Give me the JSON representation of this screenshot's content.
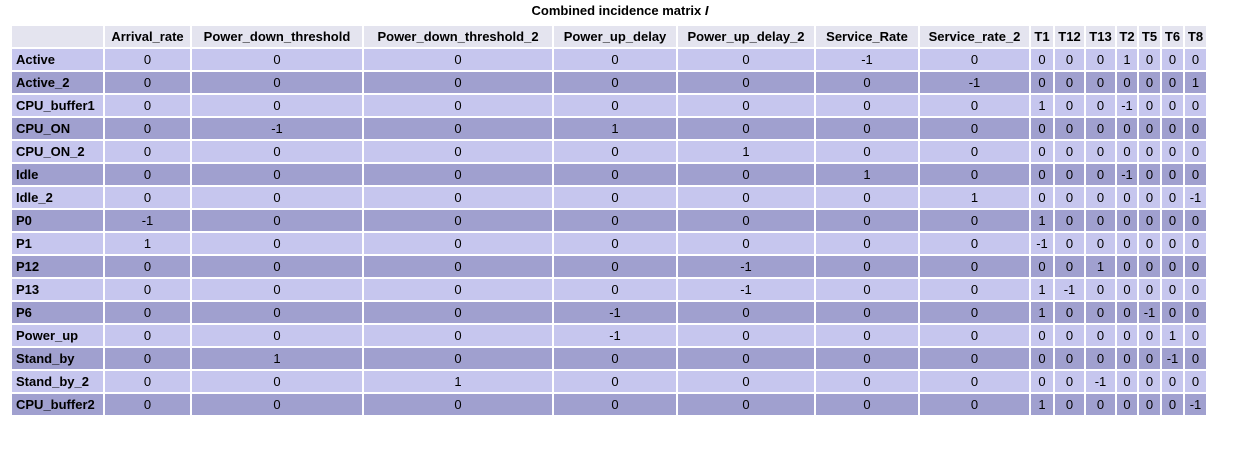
{
  "title": {
    "text": "Combined incidence matrix ",
    "symbol": "I"
  },
  "columns": [
    "Arrival_rate",
    "Power_down_threshold",
    "Power_down_threshold_2",
    "Power_up_delay",
    "Power_up_delay_2",
    "Service_Rate",
    "Service_rate_2",
    "T1",
    "T12",
    "T13",
    "T2",
    "T5",
    "T6",
    "T8"
  ],
  "rows": [
    {
      "place": "Active",
      "values": [
        "0",
        "0",
        "0",
        "0",
        "0",
        "-1",
        "0",
        "0",
        "0",
        "0",
        "1",
        "0",
        "0",
        "0"
      ]
    },
    {
      "place": "Active_2",
      "values": [
        "0",
        "0",
        "0",
        "0",
        "0",
        "0",
        "-1",
        "0",
        "0",
        "0",
        "0",
        "0",
        "0",
        "1"
      ]
    },
    {
      "place": "CPU_buffer1",
      "values": [
        "0",
        "0",
        "0",
        "0",
        "0",
        "0",
        "0",
        "1",
        "0",
        "0",
        "-1",
        "0",
        "0",
        "0"
      ]
    },
    {
      "place": "CPU_ON",
      "values": [
        "0",
        "-1",
        "0",
        "1",
        "0",
        "0",
        "0",
        "0",
        "0",
        "0",
        "0",
        "0",
        "0",
        "0"
      ]
    },
    {
      "place": "CPU_ON_2",
      "values": [
        "0",
        "0",
        "0",
        "0",
        "1",
        "0",
        "0",
        "0",
        "0",
        "0",
        "0",
        "0",
        "0",
        "0"
      ]
    },
    {
      "place": "Idle",
      "values": [
        "0",
        "0",
        "0",
        "0",
        "0",
        "1",
        "0",
        "0",
        "0",
        "0",
        "-1",
        "0",
        "0",
        "0"
      ]
    },
    {
      "place": "Idle_2",
      "values": [
        "0",
        "0",
        "0",
        "0",
        "0",
        "0",
        "1",
        "0",
        "0",
        "0",
        "0",
        "0",
        "0",
        "-1"
      ]
    },
    {
      "place": "P0",
      "values": [
        "-1",
        "0",
        "0",
        "0",
        "0",
        "0",
        "0",
        "1",
        "0",
        "0",
        "0",
        "0",
        "0",
        "0"
      ]
    },
    {
      "place": "P1",
      "values": [
        "1",
        "0",
        "0",
        "0",
        "0",
        "0",
        "0",
        "-1",
        "0",
        "0",
        "0",
        "0",
        "0",
        "0"
      ]
    },
    {
      "place": "P12",
      "values": [
        "0",
        "0",
        "0",
        "0",
        "-1",
        "0",
        "0",
        "0",
        "0",
        "1",
        "0",
        "0",
        "0",
        "0"
      ]
    },
    {
      "place": "P13",
      "values": [
        "0",
        "0",
        "0",
        "0",
        "-1",
        "0",
        "0",
        "1",
        "-1",
        "0",
        "0",
        "0",
        "0",
        "0"
      ]
    },
    {
      "place": "P6",
      "values": [
        "0",
        "0",
        "0",
        "-1",
        "0",
        "0",
        "0",
        "1",
        "0",
        "0",
        "0",
        "-1",
        "0",
        "0"
      ]
    },
    {
      "place": "Power_up",
      "values": [
        "0",
        "0",
        "0",
        "-1",
        "0",
        "0",
        "0",
        "0",
        "0",
        "0",
        "0",
        "0",
        "1",
        "0"
      ]
    },
    {
      "place": "Stand_by",
      "values": [
        "0",
        "1",
        "0",
        "0",
        "0",
        "0",
        "0",
        "0",
        "0",
        "0",
        "0",
        "0",
        "-1",
        "0"
      ]
    },
    {
      "place": "Stand_by_2",
      "values": [
        "0",
        "0",
        "1",
        "0",
        "0",
        "0",
        "0",
        "0",
        "0",
        "-1",
        "0",
        "0",
        "0",
        "0"
      ]
    },
    {
      "place": "CPU_buffer2",
      "values": [
        "0",
        "0",
        "0",
        "0",
        "0",
        "0",
        "0",
        "1",
        "0",
        "0",
        "0",
        "0",
        "0",
        "-1"
      ]
    }
  ],
  "colors": {
    "header_background": "#e4e4ef",
    "row_light": "#c6c6ee",
    "row_dark": "#a0a0cf"
  }
}
